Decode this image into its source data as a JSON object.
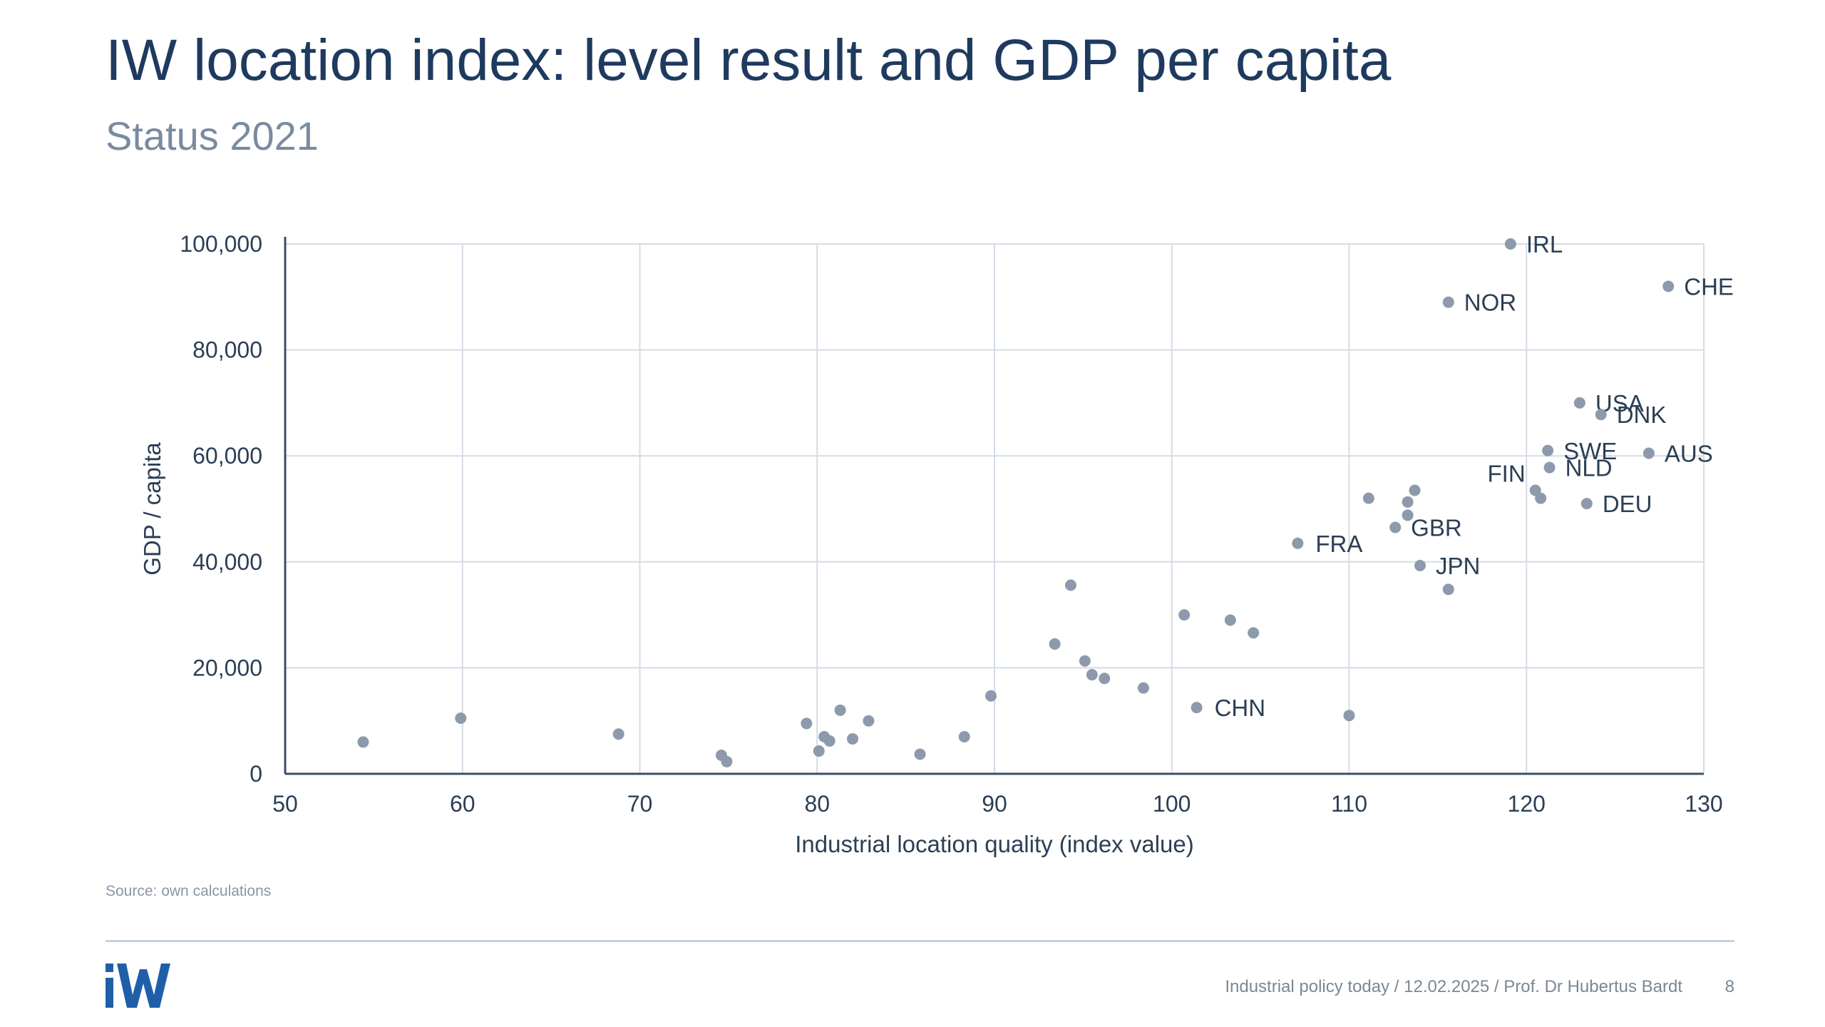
{
  "slide": {
    "title": "IW location index: level result and GDP per capita",
    "subtitle": "Status 2021",
    "source": "Source: own calculations",
    "footer": "Industrial policy today / 12.02.2025 / Prof. Dr Hubertus Bardt",
    "page_number": "8",
    "logo_text": "iW"
  },
  "colors": {
    "title": "#1f3a5f",
    "subtitle": "#7a8ba0",
    "point": "#8d9aab",
    "axis": "#3a4f66",
    "grid": "#d4dce6",
    "label": "#2b3f55",
    "logo": "#1f5fa8"
  },
  "chart_data": {
    "type": "scatter",
    "xlabel": "Industrial location quality (index value)",
    "ylabel": "GDP / capita",
    "xlim": [
      50,
      130
    ],
    "ylim": [
      0,
      100000
    ],
    "xticks": [
      50,
      60,
      70,
      80,
      90,
      100,
      110,
      120,
      130
    ],
    "yticks": [
      0,
      20000,
      40000,
      60000,
      80000,
      100000
    ],
    "xtick_labels": [
      "50",
      "60",
      "70",
      "80",
      "90",
      "100",
      "110",
      "120",
      "130"
    ],
    "ytick_labels": [
      "0",
      "20,000",
      "40,000",
      "60,000",
      "80,000",
      "100,000"
    ],
    "grid": true,
    "points": [
      {
        "x": 54.4,
        "y": 6000,
        "label": ""
      },
      {
        "x": 59.9,
        "y": 10500,
        "label": ""
      },
      {
        "x": 68.8,
        "y": 7500,
        "label": ""
      },
      {
        "x": 74.6,
        "y": 3500,
        "label": ""
      },
      {
        "x": 74.9,
        "y": 2300,
        "label": ""
      },
      {
        "x": 79.4,
        "y": 9500,
        "label": ""
      },
      {
        "x": 80.4,
        "y": 7000,
        "label": ""
      },
      {
        "x": 80.7,
        "y": 6200,
        "label": ""
      },
      {
        "x": 80.1,
        "y": 4300,
        "label": ""
      },
      {
        "x": 81.3,
        "y": 12000,
        "label": ""
      },
      {
        "x": 82.0,
        "y": 6600,
        "label": ""
      },
      {
        "x": 82.9,
        "y": 10000,
        "label": ""
      },
      {
        "x": 85.8,
        "y": 3700,
        "label": ""
      },
      {
        "x": 88.3,
        "y": 7000,
        "label": ""
      },
      {
        "x": 89.8,
        "y": 14700,
        "label": ""
      },
      {
        "x": 93.4,
        "y": 24500,
        "label": ""
      },
      {
        "x": 94.3,
        "y": 35600,
        "label": ""
      },
      {
        "x": 95.1,
        "y": 21300,
        "label": ""
      },
      {
        "x": 95.5,
        "y": 18700,
        "label": ""
      },
      {
        "x": 96.2,
        "y": 18000,
        "label": ""
      },
      {
        "x": 98.4,
        "y": 16200,
        "label": ""
      },
      {
        "x": 100.7,
        "y": 30000,
        "label": ""
      },
      {
        "x": 101.4,
        "y": 12500,
        "label": "CHN"
      },
      {
        "x": 103.3,
        "y": 29000,
        "label": ""
      },
      {
        "x": 104.6,
        "y": 26600,
        "label": ""
      },
      {
        "x": 107.1,
        "y": 43500,
        "label": "FRA"
      },
      {
        "x": 110.0,
        "y": 11000,
        "label": ""
      },
      {
        "x": 111.1,
        "y": 52000,
        "label": ""
      },
      {
        "x": 112.6,
        "y": 46500,
        "label": "GBR"
      },
      {
        "x": 113.3,
        "y": 48800,
        "label": ""
      },
      {
        "x": 113.3,
        "y": 51300,
        "label": ""
      },
      {
        "x": 113.7,
        "y": 53500,
        "label": ""
      },
      {
        "x": 114.0,
        "y": 39300,
        "label": "JPN"
      },
      {
        "x": 115.6,
        "y": 34800,
        "label": ""
      },
      {
        "x": 115.6,
        "y": 89000,
        "label": "NOR"
      },
      {
        "x": 119.1,
        "y": 100000,
        "label": "IRL"
      },
      {
        "x": 120.5,
        "y": 53500,
        "label": "FIN"
      },
      {
        "x": 120.8,
        "y": 52000,
        "label": ""
      },
      {
        "x": 121.2,
        "y": 61000,
        "label": "SWE"
      },
      {
        "x": 121.3,
        "y": 57800,
        "label": "NLD"
      },
      {
        "x": 123.0,
        "y": 70000,
        "label": "USA"
      },
      {
        "x": 123.4,
        "y": 51000,
        "label": "DEU"
      },
      {
        "x": 124.2,
        "y": 67800,
        "label": "DNK"
      },
      {
        "x": 126.9,
        "y": 60500,
        "label": "AUS"
      },
      {
        "x": 128.0,
        "y": 92000,
        "label": "CHE"
      }
    ]
  }
}
